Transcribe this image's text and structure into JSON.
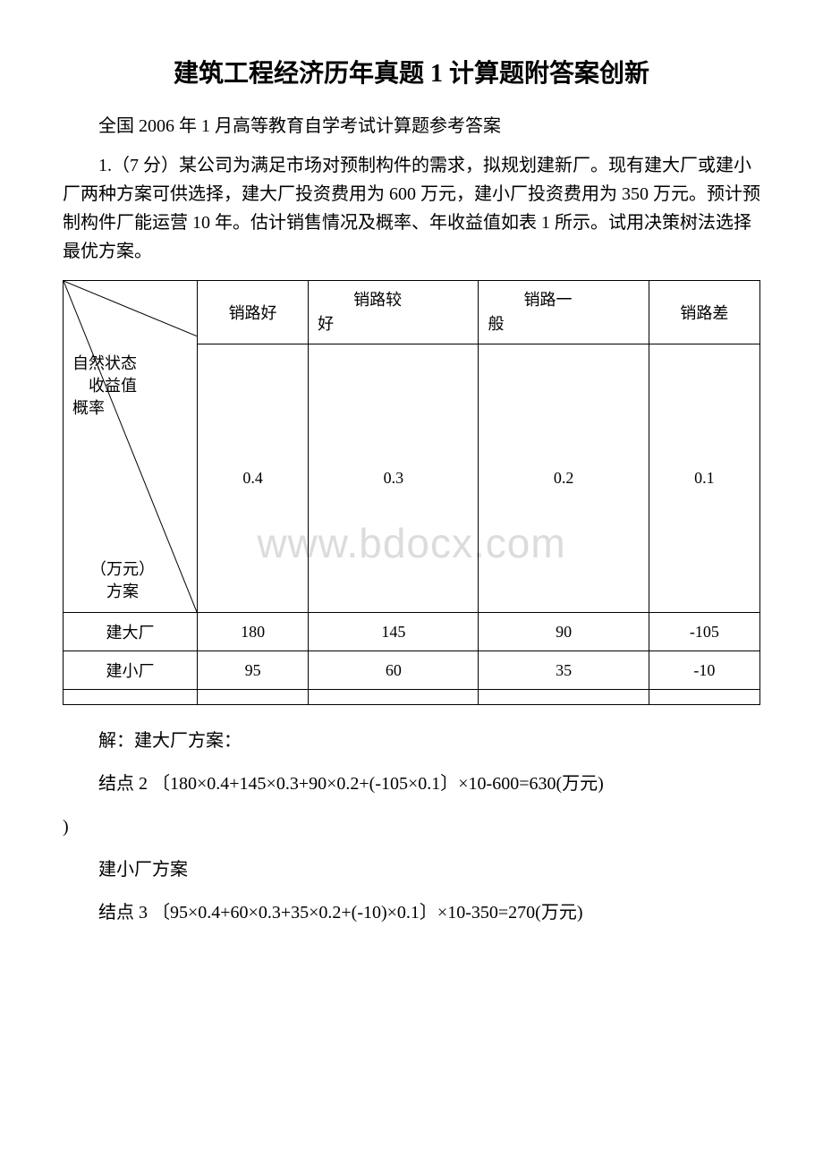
{
  "title": "建筑工程经济历年真题 1 计算题附答案创新",
  "subtitle": "全国 2006 年 1 月高等教育自学考试计算题参考答案",
  "question": "1.（7 分）某公司为满足市场对预制构件的需求，拟规划建新厂。现有建大厂或建小厂两种方案可供选择，建大厂投资费用为 600 万元，建小厂投资费用为 350 万元。预计预制构件厂能运营 10 年。估计销售情况及概率、年收益值如表 1 所示。试用决策树法选择最优方案。",
  "table": {
    "headers": [
      "销路好",
      "销路较好",
      "销路一般",
      "销路差"
    ],
    "diag_labels": {
      "top": "自然状态\n　收益值\n概率",
      "bottom": "（万元）\n　方案"
    },
    "probabilities": [
      "0.4",
      "0.3",
      "0.2",
      "0.1"
    ],
    "rows": [
      {
        "label": "建大厂",
        "values": [
          "180",
          "145",
          "90",
          "-105"
        ]
      },
      {
        "label": "建小厂",
        "values": [
          "95",
          "60",
          "35",
          "-10"
        ]
      }
    ]
  },
  "solution": {
    "line1": "解：建大厂方案：",
    "line2": "结点 2 〔180×0.4+145×0.3+90×0.2+(-105×0.1〕×10-600=630(万元)",
    "line3": "建小厂方案",
    "line4": "结点 3 〔95×0.4+60×0.3+35×0.2+(-10)×0.1〕×10-350=270(万元)"
  },
  "watermark": "www.bdocx.com"
}
